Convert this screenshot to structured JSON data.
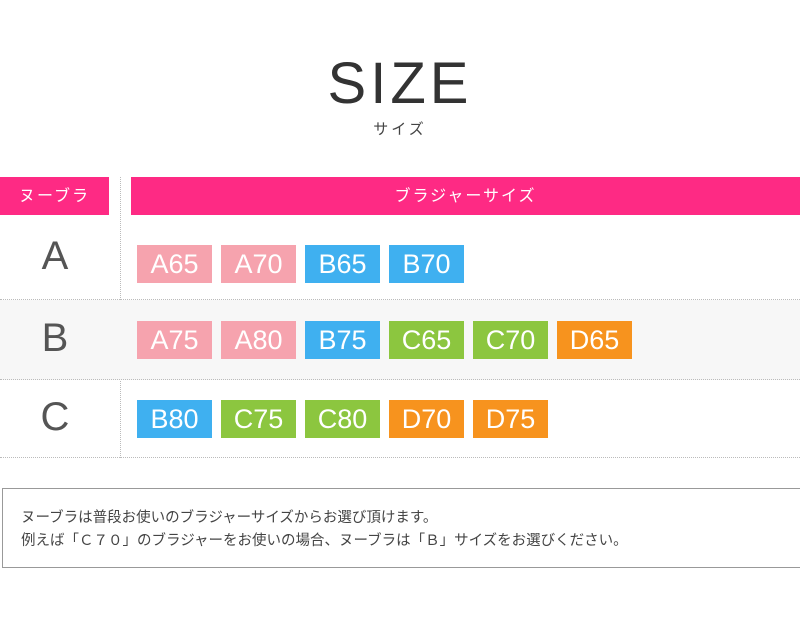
{
  "title": "SIZE",
  "subtitle": "サイズ",
  "header": {
    "left": "ヌーブラ",
    "right": "ブラジャーサイズ"
  },
  "colors": {
    "header": "#fe2a84",
    "A": "#f6a3ae",
    "B": "#3fb0f0",
    "C": "#8cc63f",
    "D": "#f7931e"
  },
  "rows": [
    {
      "label": "A",
      "sizes": [
        "A65",
        "A70",
        "B65",
        "B70"
      ]
    },
    {
      "label": "B",
      "sizes": [
        "A75",
        "A80",
        "B75",
        "C65",
        "C70",
        "D65"
      ]
    },
    {
      "label": "C",
      "sizes": [
        "B80",
        "C75",
        "C80",
        "D70",
        "D75"
      ]
    }
  ],
  "note": {
    "line1": "ヌーブラは普段お使いのブラジャーサイズからお選び頂けます。",
    "line2": "例えば「Ｃ７０」のブラジャーをお使いの場合、ヌーブラは「Ｂ」サイズをお選びください。"
  }
}
